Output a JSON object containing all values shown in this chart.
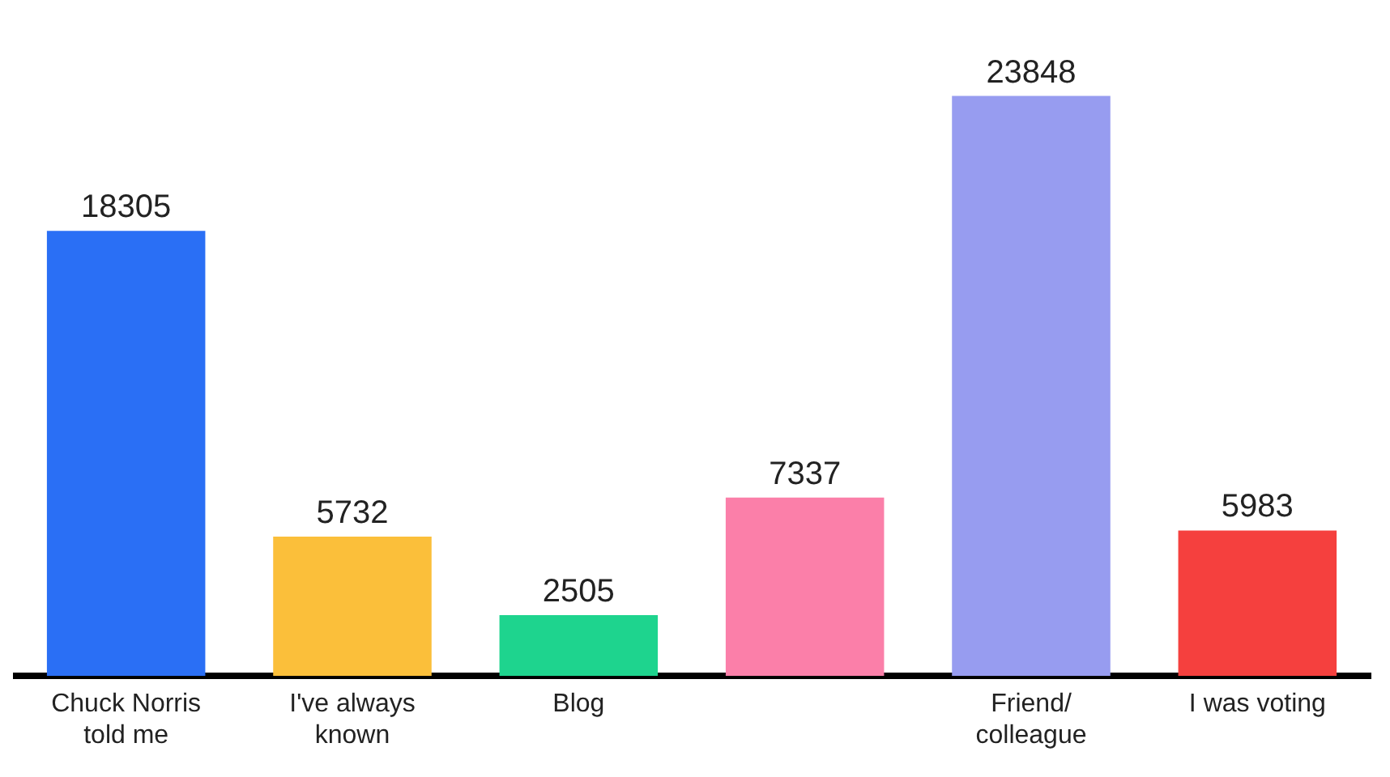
{
  "chart_data": {
    "type": "bar",
    "categories": [
      "Chuck Norris told me",
      "I've always known",
      "Blog",
      null,
      "Friend/ colleague",
      "I was voting"
    ],
    "values": [
      18305,
      5732,
      2505,
      7337,
      23848,
      5983
    ],
    "colors": [
      "#2a6ff5",
      "#fbbf3a",
      "#1ed48e",
      "#fb7fa9",
      "#979cf0",
      "#f5403e"
    ],
    "data_labels": true,
    "legend": false
  }
}
